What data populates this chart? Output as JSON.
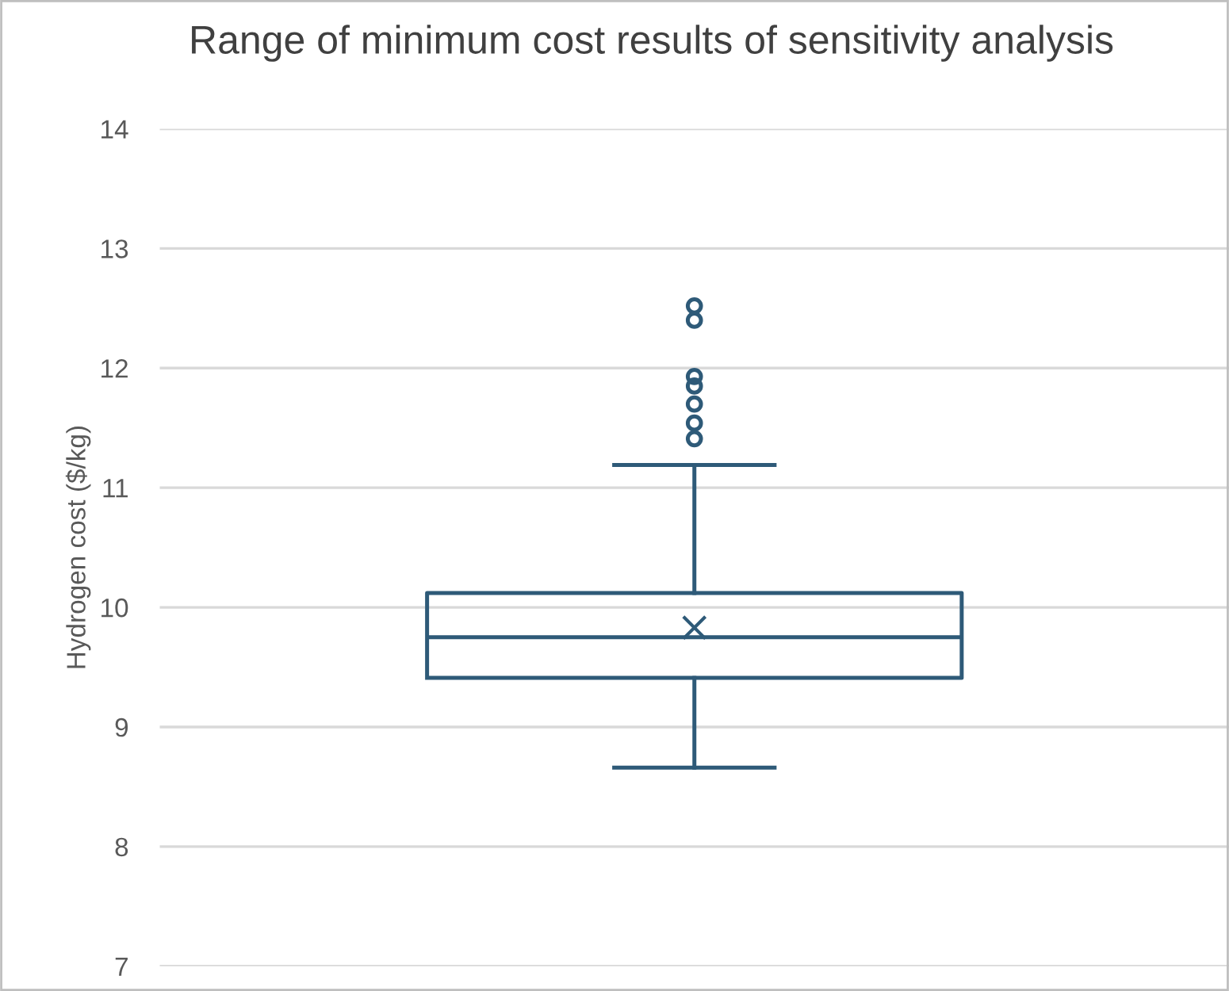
{
  "chart_data": {
    "type": "box",
    "title": "Range of minimum cost results of sensitivity analysis",
    "ylabel": "Hydrogen cost ($/kg)",
    "categories": [
      null
    ],
    "boxes": [
      {
        "low": 8.66,
        "q1": 9.41,
        "median": 9.75,
        "q3": 10.12,
        "high": 11.19,
        "mean": 9.83,
        "outliers": [
          12.52,
          12.4,
          11.93,
          11.85,
          11.7,
          11.54,
          11.41
        ]
      }
    ],
    "color": "#2e5a78",
    "ylim": [
      7,
      14
    ],
    "yticks": [
      7,
      8,
      9,
      10,
      11,
      12,
      13,
      14
    ],
    "grid": "y",
    "legend": false
  }
}
